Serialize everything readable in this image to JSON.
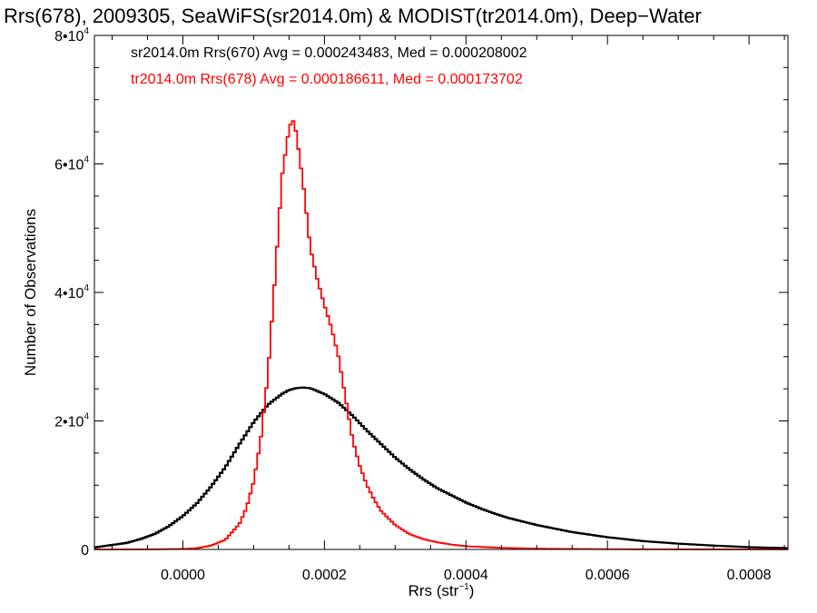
{
  "chart_data": {
    "type": "line",
    "title": "Rrs(678), 2009305, SeaWiFS(sr2014.0m) & MODIST(tr2014.0m), Deep−Water",
    "xlabel": "Rrs (str",
    "xlabel_sup": "−1",
    "xlabel_end": ")",
    "ylabel": "Number of Observations",
    "xlim": [
      -0.000125,
      0.000855
    ],
    "ylim": [
      0,
      80000
    ],
    "x_ticks": [
      0.0,
      0.0002,
      0.0004,
      0.0006,
      0.0008
    ],
    "x_tick_labels": [
      "0.0000",
      "0.0002",
      "0.0004",
      "0.0006",
      "0.0008"
    ],
    "y_ticks": [
      0,
      20000,
      40000,
      60000,
      80000
    ],
    "y_tick_labels": [
      {
        "base": "0",
        "exp": ""
      },
      {
        "base": "2•10",
        "exp": "4"
      },
      {
        "base": "4•10",
        "exp": "4"
      },
      {
        "base": "6•10",
        "exp": "4"
      },
      {
        "base": "8•10",
        "exp": "4"
      }
    ],
    "grid": false,
    "annotations": [
      {
        "text": "sr2014.0m Rrs(670) Avg = 0.000243483, Med = 0.000208002",
        "color": "#000000"
      },
      {
        "text": "tr2014.0m Rrs(678) Avg = 0.000186611, Med = 0.000173702",
        "color": "#ff0000"
      }
    ],
    "series": [
      {
        "color": "#000000",
        "step": true,
        "x": [
          -0.000125,
          -0.0001,
          -8e-05,
          -6e-05,
          -4e-05,
          -2e-05,
          0.0,
          2e-05,
          4e-05,
          6e-05,
          8e-05,
          0.0001,
          0.00012,
          0.00014,
          0.00015,
          0.00016,
          0.00017,
          0.00018,
          0.0002,
          0.00022,
          0.00024,
          0.00026,
          0.00028,
          0.0003,
          0.00032,
          0.00034,
          0.00036,
          0.00038,
          0.0004,
          0.00042,
          0.00044,
          0.00046,
          0.0005,
          0.00055,
          0.0006,
          0.00065,
          0.0007,
          0.00075,
          0.0008,
          0.000855
        ],
        "y": [
          300,
          700,
          1000,
          1600,
          2400,
          3600,
          5200,
          7200,
          9800,
          12800,
          16400,
          19800,
          22500,
          24200,
          24800,
          25100,
          25200,
          25100,
          24200,
          22800,
          20800,
          18500,
          16400,
          14300,
          12500,
          10900,
          9500,
          8400,
          7300,
          6400,
          5600,
          4900,
          3800,
          2700,
          1900,
          1300,
          900,
          600,
          350,
          200
        ]
      },
      {
        "color": "#ff0000",
        "step": true,
        "x": [
          -0.000125,
          -8e-05,
          -4e-05,
          0.0,
          2e-05,
          4e-05,
          6e-05,
          8e-05,
          9e-05,
          0.0001,
          0.00011,
          0.00012,
          0.00013,
          0.00014,
          0.00015,
          0.000155,
          0.00016,
          0.00017,
          0.00018,
          0.00019,
          0.0002,
          0.00021,
          0.00022,
          0.00023,
          0.00024,
          0.00025,
          0.00026,
          0.00027,
          0.00028,
          0.0003,
          0.00032,
          0.00034,
          0.00036,
          0.00038,
          0.0004,
          0.00045,
          0.0005,
          0.0006,
          0.0007,
          0.000855
        ],
        "y": [
          0,
          0,
          20,
          80,
          200,
          600,
          1500,
          4000,
          6500,
          10500,
          17000,
          27000,
          42000,
          58000,
          65500,
          67000,
          65000,
          57000,
          47000,
          42000,
          38000,
          34500,
          30000,
          23500,
          17000,
          13000,
          10000,
          7800,
          6000,
          3800,
          2400,
          1600,
          1100,
          750,
          500,
          250,
          120,
          40,
          10,
          0
        ]
      }
    ]
  }
}
